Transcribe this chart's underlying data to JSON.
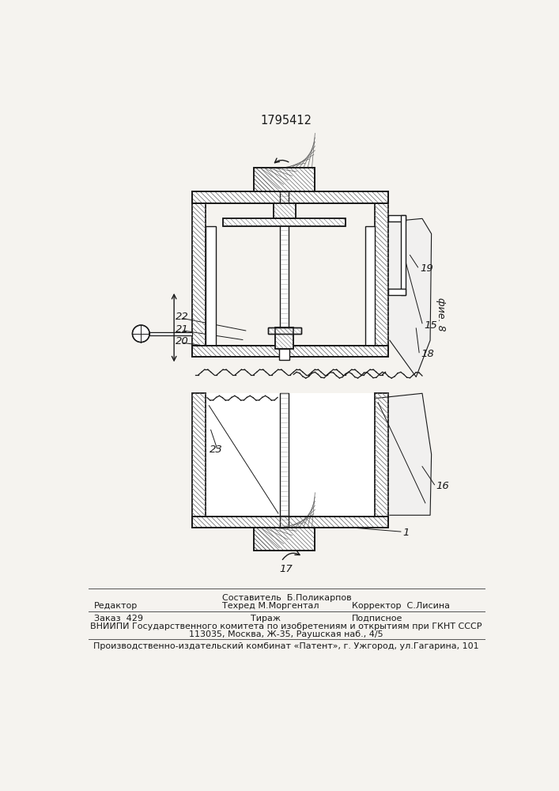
{
  "patent_number": "1795412",
  "fig_label": "фие. 8",
  "background_color": "#f5f3ef",
  "footer": {
    "col2_line1": "Составитель  Б.Поликарпов",
    "col1_line2": "Редактор",
    "col2_line2": "Техред М.Моргентал",
    "col3_line2": "Корректор  С.Лисина",
    "col1_line3": "Заказ  429",
    "col2_line3": "Тираж",
    "col3_line3": "Подписное",
    "line4": "ВНИИПИ Государственного комитета по изобретениям и открытиям при ГКНТ СССР",
    "line5": "113035, Москва, Ж-35, Раушская наб., 4/5",
    "line6": "Производственно-издательский комбинат «Патент», г. Ужгород, ул.Гагарина, 101"
  }
}
